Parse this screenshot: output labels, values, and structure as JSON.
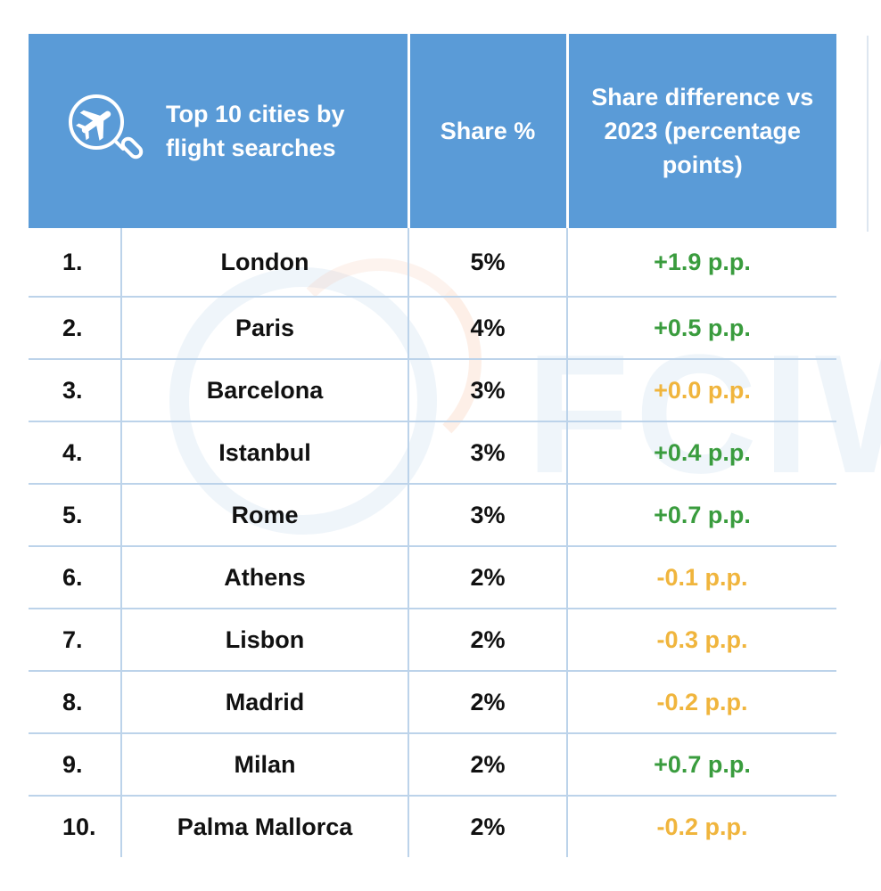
{
  "header": {
    "col_city": "Top 10 cities by flight searches",
    "col_share": "Share %",
    "col_diff": "Share difference vs 2023 (percentage points)",
    "icon": "plane-search-icon"
  },
  "colors": {
    "header_bg": "#5a9bd7",
    "positive": "#3a9c3e",
    "negative_or_zero": "#f0b53d"
  },
  "chart_data": {
    "type": "table",
    "columns": [
      "Top 10 cities by flight searches",
      "Share %",
      "Share difference vs 2023 (percentage points)"
    ],
    "rows": [
      {
        "rank": "1.",
        "city": "London",
        "share": "5%",
        "diff": "+1.9 p.p."
      },
      {
        "rank": "2.",
        "city": "Paris",
        "share": "4%",
        "diff": "+0.5 p.p."
      },
      {
        "rank": "3.",
        "city": "Barcelona",
        "share": "3%",
        "diff": "+0.0 p.p."
      },
      {
        "rank": "4.",
        "city": "Istanbul",
        "share": "3%",
        "diff": "+0.4 p.p."
      },
      {
        "rank": "5.",
        "city": "Rome",
        "share": "3%",
        "diff": "+0.7 p.p."
      },
      {
        "rank": "6.",
        "city": "Athens",
        "share": "2%",
        "diff": "-0.1 p.p."
      },
      {
        "rank": "7.",
        "city": "Lisbon",
        "share": "2%",
        "diff": "-0.3 p.p."
      },
      {
        "rank": "8.",
        "city": "Madrid",
        "share": "2%",
        "diff": "-0.2 p.p."
      },
      {
        "rank": "9.",
        "city": "Milan",
        "share": "2%",
        "diff": "+0.7 p.p."
      },
      {
        "rank": "10.",
        "city": "Palma Mallorca",
        "share": "2%",
        "diff": "-0.2 p.p."
      }
    ]
  }
}
